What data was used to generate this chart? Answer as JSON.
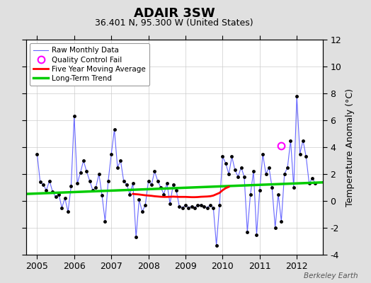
{
  "title": "ADAIR 3SW",
  "subtitle": "36.401 N, 95.300 W (United States)",
  "ylabel": "Temperature Anomaly (°C)",
  "credit": "Berkeley Earth",
  "ylim": [
    -4,
    12
  ],
  "yticks": [
    -4,
    -2,
    0,
    2,
    4,
    6,
    8,
    10,
    12
  ],
  "xlim": [
    2004.7,
    2012.7
  ],
  "background_color": "#e0e0e0",
  "plot_bg_color": "#ffffff",
  "raw_x": [
    2005.0,
    2005.083,
    2005.167,
    2005.25,
    2005.333,
    2005.417,
    2005.5,
    2005.583,
    2005.667,
    2005.75,
    2005.833,
    2005.917,
    2006.0,
    2006.083,
    2006.167,
    2006.25,
    2006.333,
    2006.417,
    2006.5,
    2006.583,
    2006.667,
    2006.75,
    2006.833,
    2006.917,
    2007.0,
    2007.083,
    2007.167,
    2007.25,
    2007.333,
    2007.417,
    2007.5,
    2007.583,
    2007.667,
    2007.75,
    2007.833,
    2007.917,
    2008.0,
    2008.083,
    2008.167,
    2008.25,
    2008.333,
    2008.417,
    2008.5,
    2008.583,
    2008.667,
    2008.75,
    2008.833,
    2008.917,
    2009.0,
    2009.083,
    2009.167,
    2009.25,
    2009.333,
    2009.417,
    2009.5,
    2009.583,
    2009.667,
    2009.75,
    2009.833,
    2009.917,
    2010.0,
    2010.083,
    2010.167,
    2010.25,
    2010.333,
    2010.417,
    2010.5,
    2010.583,
    2010.667,
    2010.75,
    2010.833,
    2010.917,
    2011.0,
    2011.083,
    2011.167,
    2011.25,
    2011.333,
    2011.417,
    2011.5,
    2011.583,
    2011.667,
    2011.75,
    2011.833,
    2011.917,
    2012.0,
    2012.083,
    2012.167,
    2012.25,
    2012.333,
    2012.417,
    2012.5
  ],
  "raw_y": [
    3.5,
    1.4,
    1.2,
    0.8,
    1.5,
    0.7,
    0.3,
    0.5,
    -0.5,
    0.2,
    -0.8,
    1.1,
    6.3,
    1.3,
    2.1,
    3.0,
    2.2,
    1.5,
    0.8,
    1.0,
    2.0,
    0.4,
    -1.5,
    1.5,
    3.5,
    5.3,
    2.5,
    3.0,
    1.5,
    1.2,
    0.5,
    1.3,
    -2.7,
    0.1,
    -0.8,
    -0.3,
    1.5,
    1.2,
    2.2,
    1.5,
    1.0,
    0.5,
    1.3,
    -0.2,
    1.2,
    0.8,
    -0.4,
    -0.5,
    -0.3,
    -0.5,
    -0.4,
    -0.5,
    -0.3,
    -0.3,
    -0.4,
    -0.5,
    -0.3,
    -0.5,
    -3.3,
    -0.3,
    3.3,
    2.8,
    2.0,
    3.3,
    2.3,
    1.8,
    2.5,
    1.8,
    -2.3,
    0.5,
    2.2,
    -2.5,
    0.8,
    3.5,
    2.0,
    2.5,
    1.0,
    -2.0,
    0.5,
    -1.5,
    2.0,
    2.5,
    4.5,
    1.0,
    7.8,
    3.5,
    4.5,
    3.3,
    1.3,
    1.7,
    1.3
  ],
  "qc_fail_x": [
    2011.583
  ],
  "qc_fail_y": [
    4.1
  ],
  "moving_avg_x": [
    2007.583,
    2007.667,
    2007.75,
    2007.833,
    2007.917,
    2008.0,
    2008.083,
    2008.167,
    2008.25,
    2008.333,
    2008.417,
    2008.5,
    2008.583,
    2008.667,
    2008.75,
    2008.833,
    2008.917,
    2009.0,
    2009.083,
    2009.167,
    2009.25,
    2009.333,
    2009.417,
    2009.5,
    2009.583,
    2009.667,
    2009.75,
    2009.833,
    2009.917,
    2010.0,
    2010.083,
    2010.167
  ],
  "moving_avg_y": [
    0.52,
    0.5,
    0.48,
    0.45,
    0.42,
    0.4,
    0.38,
    0.35,
    0.33,
    0.31,
    0.3,
    0.3,
    0.31,
    0.32,
    0.31,
    0.3,
    0.3,
    0.3,
    0.29,
    0.28,
    0.28,
    0.29,
    0.31,
    0.32,
    0.33,
    0.35,
    0.4,
    0.5,
    0.6,
    0.8,
    0.95,
    1.05
  ],
  "trend_x": [
    2004.7,
    2012.7
  ],
  "trend_y": [
    0.52,
    1.38
  ],
  "raw_color": "#6666ff",
  "raw_marker_color": "#000000",
  "qc_color": "#ff00ff",
  "moving_avg_color": "#ff0000",
  "trend_color": "#00cc00",
  "grid_color": "#cccccc"
}
